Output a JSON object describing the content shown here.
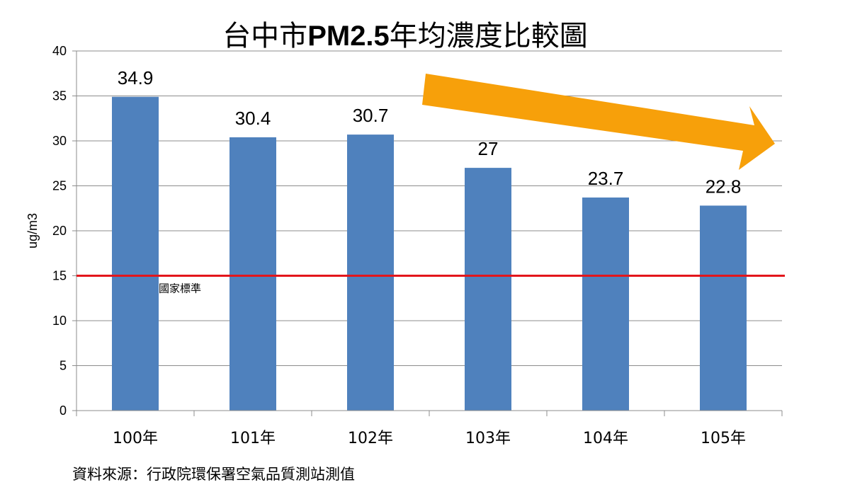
{
  "chart_data": {
    "type": "bar",
    "title_part1": "台中市",
    "title_part2": "PM2.5",
    "title_part3": "年均濃度比較圖",
    "title": "台中市PM2.5年均濃度比較圖",
    "ylabel": "ug/m3",
    "xlabel": "",
    "categories": [
      "100年",
      "101年",
      "102年",
      "103年",
      "104年",
      "105年"
    ],
    "values": [
      34.9,
      30.4,
      30.7,
      27,
      23.7,
      22.8
    ],
    "data_labels": [
      "34.9",
      "30.4",
      "30.7",
      "27",
      "23.7",
      "22.8"
    ],
    "ylim": [
      0,
      40
    ],
    "yticks": [
      "0",
      "5",
      "10",
      "15",
      "20",
      "25",
      "30",
      "35",
      "40"
    ],
    "grid": true,
    "reference_line": {
      "value": 15,
      "label": "國家標準",
      "color": "#e3161b"
    },
    "trend_arrow": {
      "direction": "down-right",
      "color": "#f7a00a"
    },
    "bar_color": "#4f81bd",
    "source": "資料來源：行政院環保署空氣品質測站測值"
  }
}
